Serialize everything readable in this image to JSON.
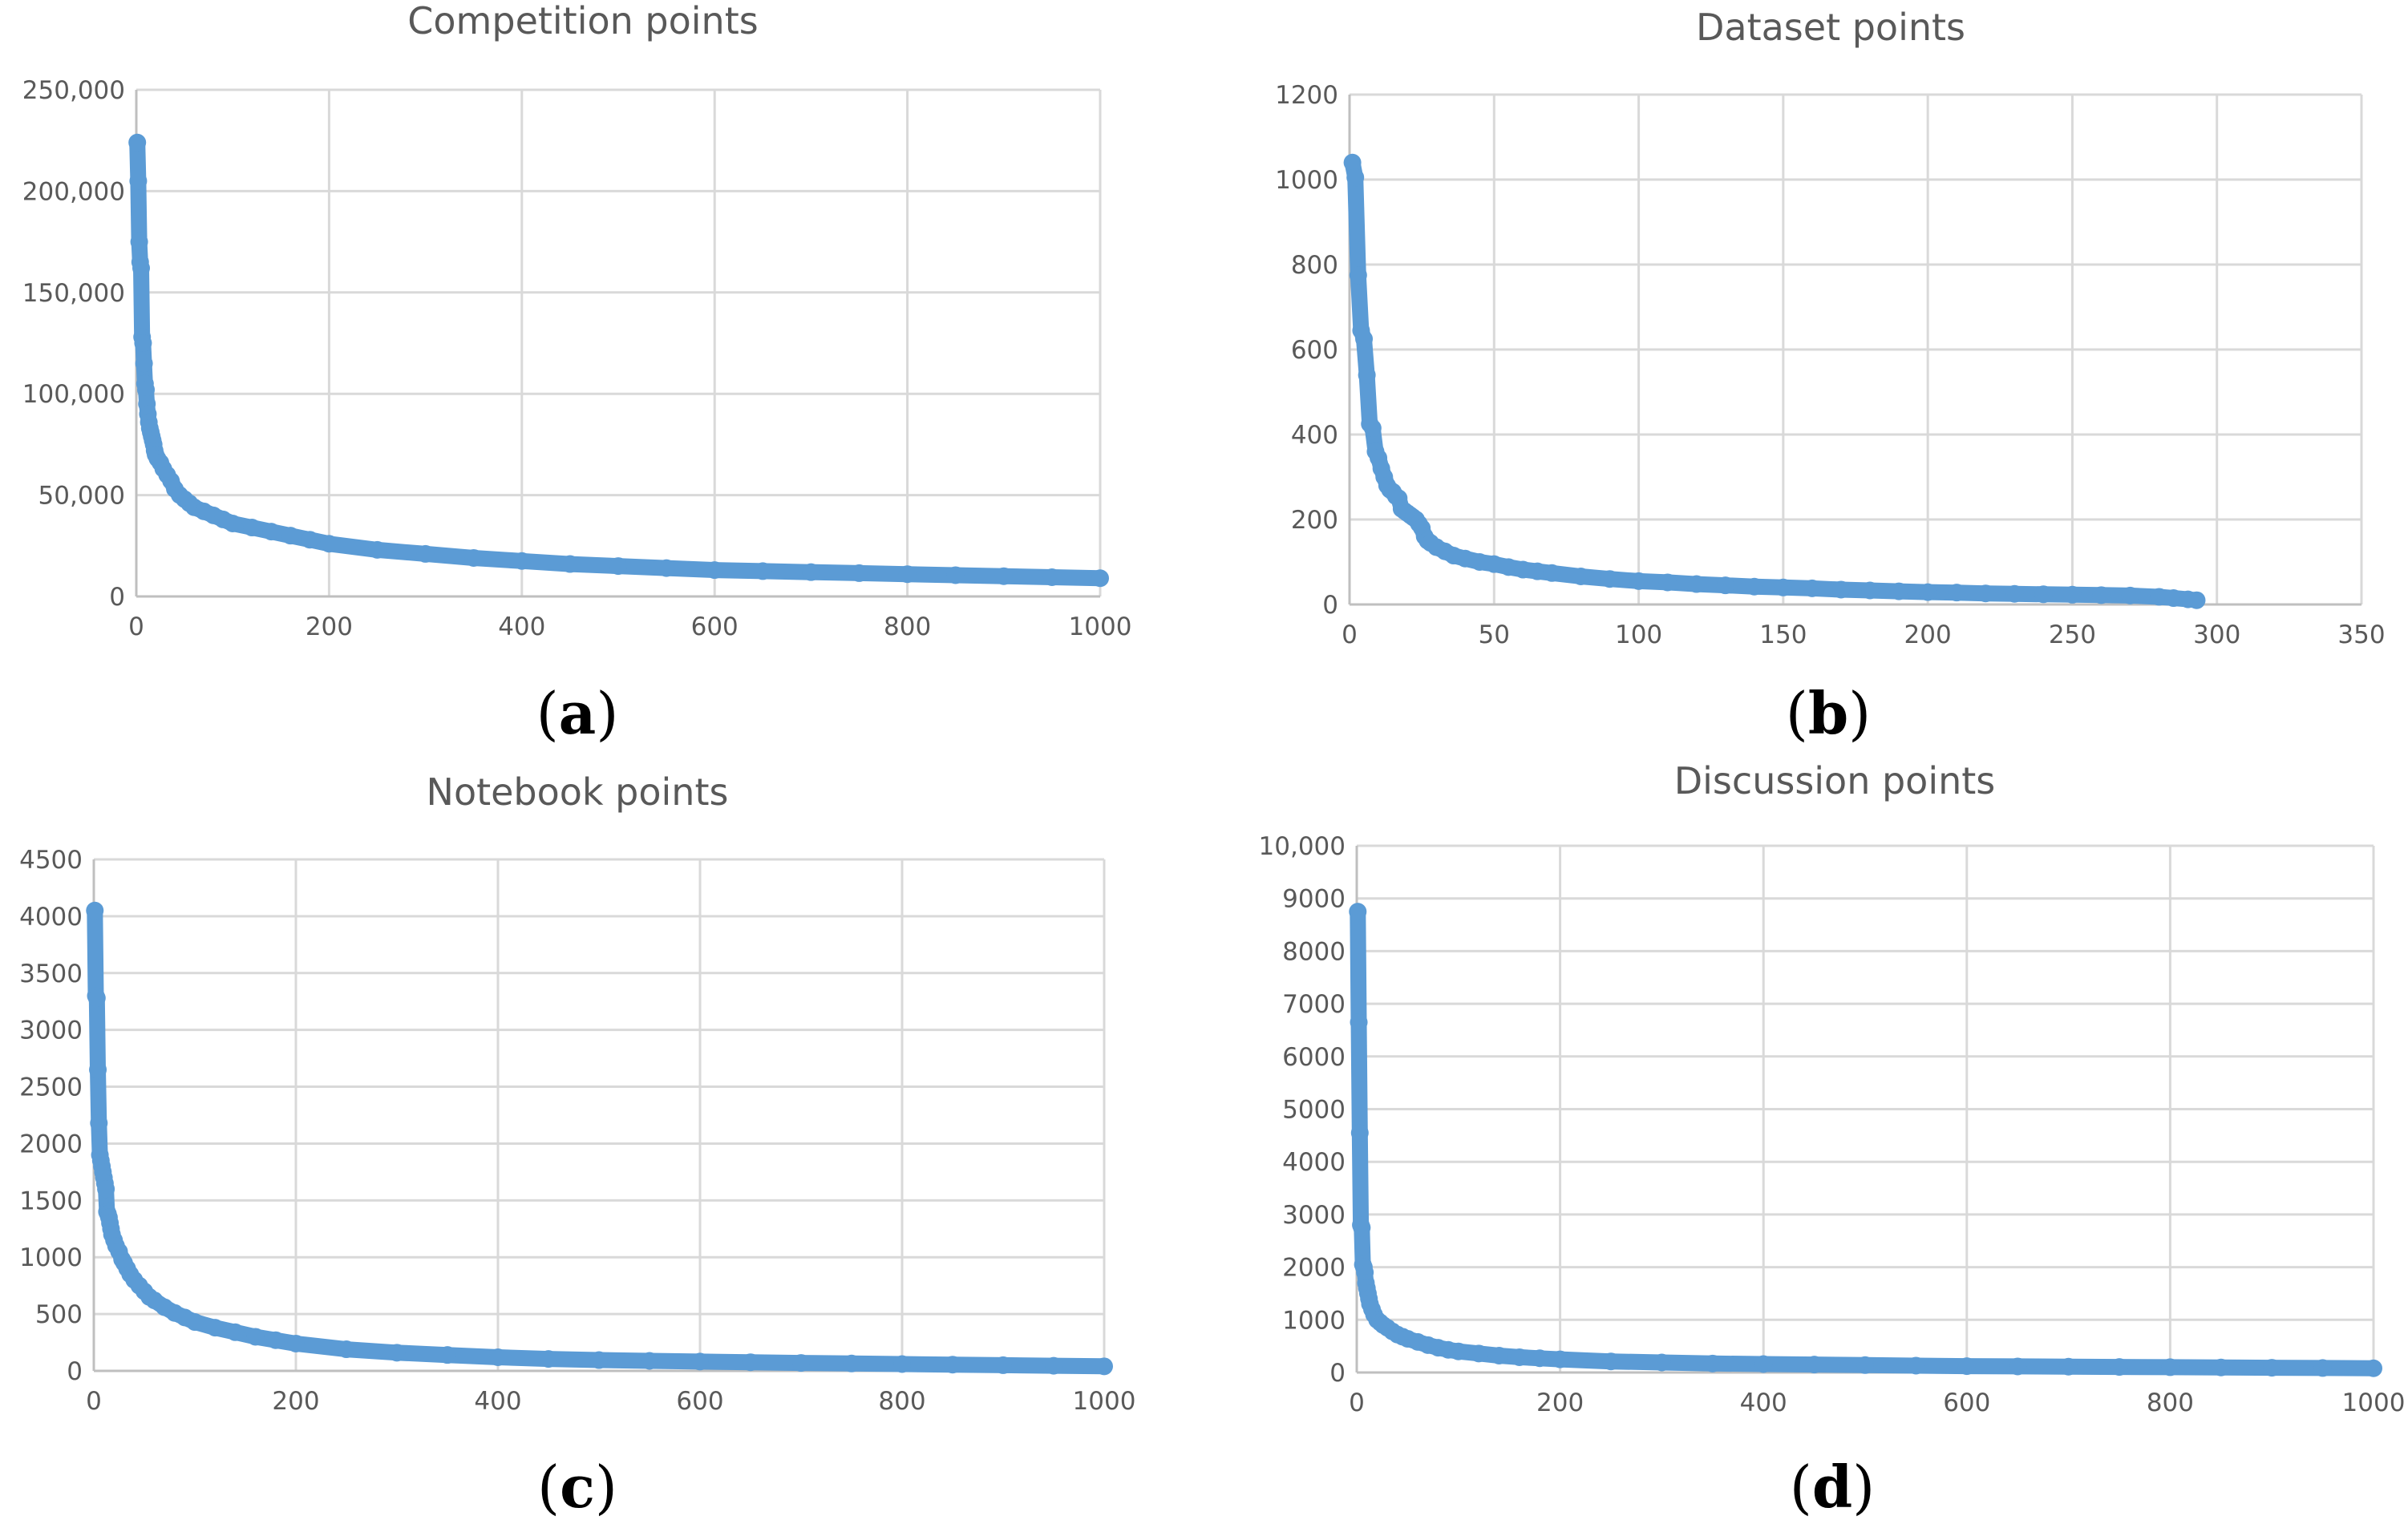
{
  "chart_data": [
    {
      "type": "scatter",
      "panel_label": "a",
      "title": "Competition points",
      "xlabel": "",
      "ylabel": "",
      "xlim": [
        0,
        1000
      ],
      "ylim": [
        0,
        250000
      ],
      "x_ticks": [
        0,
        200,
        400,
        600,
        800,
        1000
      ],
      "x_tick_labels": [
        "0",
        "200",
        "400",
        "600",
        "800",
        "1000"
      ],
      "y_ticks": [
        0,
        50000,
        100000,
        150000,
        200000,
        250000
      ],
      "y_tick_labels": [
        "0",
        "50,000",
        "100,000",
        "150,000",
        "200,000",
        "250,000"
      ],
      "grid": true,
      "color": "#5b9bd5",
      "series": [
        {
          "x": [
            1,
            2,
            3,
            4,
            5,
            6,
            7,
            8,
            9,
            10,
            11,
            12,
            13,
            14,
            15,
            16,
            17,
            18,
            19,
            20,
            22,
            25,
            28,
            32,
            36,
            40,
            45,
            50,
            55,
            60,
            70,
            80,
            90,
            100,
            120,
            140,
            160,
            180,
            200,
            250,
            300,
            350,
            400,
            450,
            500,
            550,
            600,
            650,
            700,
            750,
            800,
            850,
            900,
            950,
            1000
          ],
          "y": [
            224000,
            205000,
            175000,
            165000,
            162000,
            128000,
            125000,
            115000,
            105000,
            102000,
            95000,
            90000,
            86000,
            83000,
            81000,
            79000,
            77000,
            75000,
            72000,
            70000,
            68000,
            66000,
            63000,
            60000,
            57000,
            53000,
            50000,
            48000,
            46000,
            44000,
            42000,
            40000,
            38000,
            36000,
            34000,
            32000,
            30000,
            28000,
            26000,
            23000,
            21000,
            19000,
            17500,
            16000,
            15000,
            14000,
            13000,
            12500,
            12000,
            11500,
            11000,
            10500,
            10000,
            9500,
            9000
          ]
        }
      ]
    },
    {
      "type": "scatter",
      "panel_label": "b",
      "title": "Dataset points",
      "xlabel": "",
      "ylabel": "",
      "xlim": [
        0,
        350
      ],
      "ylim": [
        0,
        1200
      ],
      "x_ticks": [
        0,
        50,
        100,
        150,
        200,
        250,
        300,
        350
      ],
      "x_tick_labels": [
        "0",
        "50",
        "100",
        "150",
        "200",
        "250",
        "300",
        "350"
      ],
      "y_ticks": [
        0,
        200,
        400,
        600,
        800,
        1000,
        1200
      ],
      "y_tick_labels": [
        "0",
        "200",
        "400",
        "600",
        "800",
        "1000",
        "1200"
      ],
      "grid": true,
      "color": "#5b9bd5",
      "series": [
        {
          "x": [
            1,
            2,
            3,
            4,
            5,
            6,
            7,
            8,
            9,
            10,
            11,
            12,
            13,
            14,
            15,
            16,
            17,
            18,
            19,
            20,
            21,
            22,
            23,
            24,
            25,
            26,
            27,
            28,
            30,
            33,
            36,
            40,
            45,
            50,
            55,
            60,
            65,
            70,
            80,
            90,
            100,
            110,
            120,
            130,
            140,
            150,
            160,
            170,
            180,
            190,
            200,
            210,
            220,
            230,
            240,
            250,
            260,
            270,
            280,
            285,
            290,
            293
          ],
          "y": [
            1040,
            1005,
            775,
            645,
            625,
            540,
            425,
            415,
            360,
            345,
            320,
            300,
            280,
            270,
            265,
            255,
            250,
            225,
            220,
            215,
            210,
            205,
            200,
            190,
            180,
            160,
            150,
            145,
            135,
            125,
            115,
            108,
            100,
            95,
            88,
            82,
            78,
            74,
            66,
            60,
            55,
            52,
            48,
            45,
            42,
            40,
            38,
            35,
            33,
            31,
            29,
            28,
            26,
            25,
            24,
            23,
            22,
            21,
            18,
            15,
            12,
            10
          ]
        }
      ]
    },
    {
      "type": "scatter",
      "panel_label": "c",
      "title": "Notebook points",
      "xlabel": "",
      "ylabel": "",
      "xlim": [
        0,
        1000
      ],
      "ylim": [
        0,
        4500
      ],
      "x_ticks": [
        0,
        200,
        400,
        600,
        800,
        1000
      ],
      "x_tick_labels": [
        "0",
        "200",
        "400",
        "600",
        "800",
        "1000"
      ],
      "y_ticks": [
        0,
        500,
        1000,
        1500,
        2000,
        2500,
        3000,
        3500,
        4000,
        4500
      ],
      "y_tick_labels": [
        "0",
        "500",
        "1000",
        "1500",
        "2000",
        "2500",
        "3000",
        "3500",
        "4000",
        "4500"
      ],
      "grid": true,
      "color": "#5b9bd5",
      "series": [
        {
          "x": [
            1,
            2,
            3,
            4,
            5,
            6,
            7,
            8,
            9,
            10,
            11,
            12,
            13,
            14,
            15,
            16,
            17,
            18,
            20,
            22,
            25,
            28,
            30,
            33,
            36,
            40,
            45,
            50,
            55,
            60,
            70,
            80,
            90,
            100,
            120,
            140,
            160,
            180,
            200,
            250,
            300,
            350,
            400,
            450,
            500,
            550,
            600,
            650,
            700,
            750,
            800,
            850,
            900,
            950,
            1000
          ],
          "y": [
            4050,
            3300,
            3280,
            2650,
            2180,
            1900,
            1850,
            1800,
            1750,
            1700,
            1650,
            1600,
            1400,
            1380,
            1350,
            1300,
            1250,
            1200,
            1150,
            1100,
            1050,
            980,
            950,
            900,
            850,
            800,
            750,
            700,
            650,
            620,
            560,
            510,
            470,
            430,
            380,
            340,
            300,
            270,
            240,
            190,
            160,
            140,
            120,
            105,
            95,
            88,
            82,
            76,
            70,
            65,
            60,
            55,
            50,
            45,
            40
          ]
        }
      ]
    },
    {
      "type": "scatter",
      "panel_label": "d",
      "title": "Discussion points",
      "xlabel": "",
      "ylabel": "",
      "xlim": [
        0,
        1000
      ],
      "ylim": [
        0,
        10000
      ],
      "x_ticks": [
        0,
        200,
        400,
        600,
        800,
        1000
      ],
      "x_tick_labels": [
        "0",
        "200",
        "400",
        "600",
        "800",
        "1000"
      ],
      "y_ticks": [
        0,
        1000,
        2000,
        3000,
        4000,
        5000,
        6000,
        7000,
        8000,
        9000,
        10000
      ],
      "y_tick_labels": [
        "0",
        "1000",
        "2000",
        "3000",
        "4000",
        "5000",
        "6000",
        "7000",
        "8000",
        "9000",
        "10,000"
      ],
      "grid": true,
      "color": "#5b9bd5",
      "series": [
        {
          "x": [
            1,
            2,
            3,
            4,
            5,
            6,
            7,
            8,
            9,
            10,
            11,
            12,
            13,
            15,
            17,
            20,
            23,
            26,
            30,
            35,
            40,
            45,
            50,
            60,
            70,
            80,
            90,
            100,
            120,
            140,
            160,
            180,
            200,
            250,
            300,
            350,
            400,
            450,
            500,
            550,
            600,
            650,
            700,
            750,
            800,
            850,
            900,
            950,
            1000
          ],
          "y": [
            8750,
            6650,
            4550,
            2800,
            2750,
            2050,
            2000,
            1900,
            1700,
            1600,
            1500,
            1400,
            1300,
            1200,
            1100,
            1000,
            950,
            900,
            850,
            780,
            720,
            680,
            640,
            580,
            520,
            470,
            430,
            400,
            360,
            320,
            290,
            270,
            250,
            210,
            190,
            170,
            160,
            150,
            140,
            130,
            120,
            115,
            110,
            105,
            100,
            95,
            90,
            85,
            80
          ]
        }
      ]
    }
  ]
}
